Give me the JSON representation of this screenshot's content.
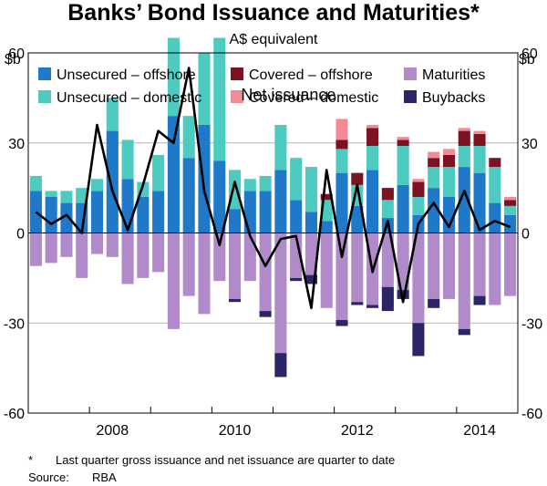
{
  "chart_data": {
    "type": "bar",
    "title": "Banks’ Bond Issuance and Maturities*",
    "subtitle": "A$ equivalent",
    "ylabel_left": "$b",
    "ylabel_right": "$b",
    "ylim": [
      -60,
      60
    ],
    "yticks": [
      -60,
      -30,
      0,
      30,
      60
    ],
    "xticks": [
      {
        "label": "2008",
        "index": 5
      },
      {
        "label": "2010",
        "index": 13
      },
      {
        "label": "2012",
        "index": 21
      },
      {
        "label": "2014",
        "index": 29
      }
    ],
    "legend": [
      {
        "key": "unsecured_offshore",
        "label": "Unsecured – offshore",
        "color": "#1f78c8"
      },
      {
        "key": "covered_offshore",
        "label": "Covered – offshore",
        "color": "#7b1323"
      },
      {
        "key": "maturities",
        "label": "Maturities",
        "color": "#b08ac9"
      },
      {
        "key": "unsecured_domestic",
        "label": "Unsecured – domestic",
        "color": "#4ecbc0"
      },
      {
        "key": "covered_domestic",
        "label": "Covered – domestic",
        "color": "#f58a96"
      },
      {
        "key": "buybacks",
        "label": "Buybacks",
        "color": "#2b2467"
      }
    ],
    "series": [
      {
        "name": "Unsecured – offshore",
        "key": "unsecured_offshore",
        "values": [
          14,
          12,
          10,
          10,
          14,
          34,
          18,
          12,
          14,
          39,
          25,
          36,
          24,
          8,
          14,
          14,
          21,
          11,
          7,
          4,
          20,
          9,
          21,
          5,
          16,
          6,
          15,
          12,
          22,
          20,
          10,
          6
        ]
      },
      {
        "name": "Unsecured – domestic",
        "key": "unsecured_domestic",
        "values": [
          5,
          2,
          4,
          5,
          4,
          11,
          13,
          5,
          12,
          26,
          14,
          24,
          41,
          13,
          4,
          5,
          15,
          14,
          15,
          7,
          8,
          7,
          8,
          6,
          13,
          6,
          7,
          10,
          7,
          9,
          12,
          3
        ]
      },
      {
        "name": "Covered – offshore",
        "key": "covered_offshore",
        "values": [
          0,
          0,
          0,
          0,
          0,
          0,
          0,
          0,
          0,
          0,
          0,
          0,
          0,
          0,
          0,
          0,
          0,
          0,
          0,
          2,
          3,
          4,
          6,
          4,
          2,
          5,
          3,
          4,
          5,
          4,
          3,
          2
        ]
      },
      {
        "name": "Covered – domestic",
        "key": "covered_domestic",
        "values": [
          0,
          0,
          0,
          0,
          0,
          0,
          0,
          0,
          0,
          0,
          0,
          0,
          0,
          0,
          0,
          0,
          0,
          0,
          0,
          0,
          7,
          0,
          1,
          0,
          1,
          1,
          2,
          2,
          1,
          1,
          0,
          1
        ]
      },
      {
        "name": "Maturities",
        "key": "maturities",
        "values": [
          -11,
          -10,
          -8,
          -15,
          -7,
          -8,
          -17,
          -15,
          -13,
          -32,
          -21,
          -27,
          -16,
          -22,
          -16,
          -26,
          -40,
          -15,
          -14,
          -25,
          -29,
          -23,
          -24,
          -18,
          -19,
          -30,
          -22,
          -22,
          -32,
          -21,
          -24,
          -21
        ]
      },
      {
        "name": "Buybacks",
        "key": "buybacks",
        "values": [
          0,
          0,
          0,
          0,
          0,
          0,
          0,
          0,
          0,
          0,
          0,
          0,
          0,
          -1,
          0,
          -2,
          -8,
          -1,
          -3,
          0,
          -2,
          -1,
          -1,
          -8,
          -3,
          -11,
          -3,
          0,
          -2,
          -3,
          0,
          0
        ]
      },
      {
        "name": "Net issuance",
        "key": "net_issuance",
        "values": [
          7,
          3,
          6,
          0,
          36,
          14,
          1,
          16,
          34,
          30,
          55,
          14,
          -4,
          17,
          -1,
          -11,
          -2,
          -1,
          -25,
          21,
          -8,
          16,
          -13,
          4,
          -23,
          3,
          10,
          2,
          14,
          1,
          4,
          2
        ]
      }
    ],
    "line_color": "#000000",
    "annotations": [
      {
        "text": "Net issuance",
        "index": 14,
        "y": 46
      }
    ],
    "quarters": 32,
    "grid": true
  },
  "footnote": {
    "marker": "*",
    "text": "Last quarter gross issuance and net issuance are quarter to date"
  },
  "source": {
    "label": "Source:",
    "text": "RBA"
  }
}
